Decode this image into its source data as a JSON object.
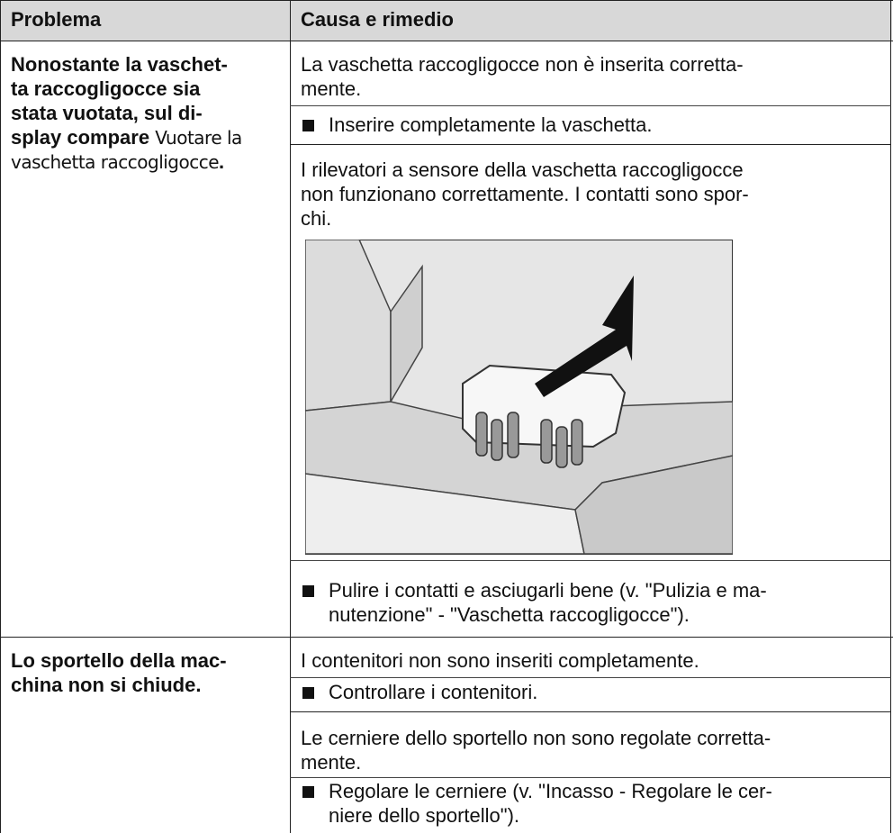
{
  "table": {
    "header": [
      "Problema",
      "Causa e rimedio"
    ],
    "rows": [
      {
        "problem": [
          "Nonostante la vaschet-",
          "ta raccogligocce sia",
          "stata vuotata, sul di-",
          "splay compare"
        ],
        "display_text": [
          "Vuotare la",
          "vaschetta raccogligocce"
        ],
        "problem_end": ".",
        "entries": [
          {
            "cause": [
              "La vaschetta raccogligocce non è inserita corretta-",
              "mente."
            ],
            "remedy": [
              "Inserire completamente la vaschetta."
            ]
          },
          {
            "cause": [
              "I rilevatori a sensore della vaschetta raccogligocce",
              "non funzionano correttamente. I contatti sono spor-",
              "chi."
            ],
            "remedy": [
              "Pulire i contatti e asciugarli bene (v. \"Pulizia e ma-",
              "nutenzione\" - \"Vaschetta raccogligocce\")."
            ]
          }
        ]
      },
      {
        "problem": [
          "Lo sportello della mac-",
          "china non si chiude."
        ],
        "entries": [
          {
            "cause": [
              "I contenitori non sono inseriti completamente."
            ],
            "remedy": [
              "Controllare i contenitori."
            ]
          },
          {
            "cause": [
              "Le cerniere dello sportello non sono regolate corretta-",
              "mente."
            ],
            "remedy": [
              "Regolare le cerniere (v. \"Incasso - Regolare le cer-",
              "niere dello sportello\")."
            ]
          }
        ]
      }
    ]
  }
}
